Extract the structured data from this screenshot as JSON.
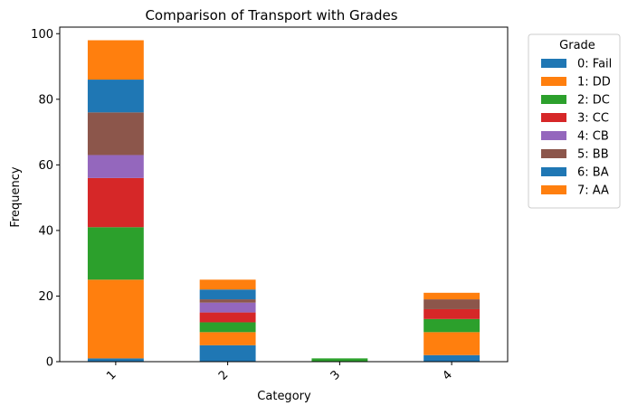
{
  "chart_data": {
    "type": "bar",
    "stacked": true,
    "title": "Comparison of Transport with Grades",
    "xlabel": "Category",
    "ylabel": "Frequency",
    "categories": [
      "1",
      "2",
      "3",
      "4"
    ],
    "ylim": [
      0,
      102
    ],
    "yticks": [
      0,
      20,
      40,
      60,
      80,
      100
    ],
    "grid": false,
    "legend": {
      "title": "Grade",
      "placement": "outside-top-right"
    },
    "series": [
      {
        "name": "0: Fail",
        "color": "#1f77b4",
        "values": [
          1,
          5,
          0,
          2
        ]
      },
      {
        "name": "1: DD",
        "color": "#ff7f0e",
        "values": [
          24,
          4,
          0,
          7
        ]
      },
      {
        "name": "2: DC",
        "color": "#2ca02c",
        "values": [
          16,
          3,
          1,
          4
        ]
      },
      {
        "name": "3: CC",
        "color": "#d62728",
        "values": [
          15,
          3,
          0,
          3
        ]
      },
      {
        "name": "4: CB",
        "color": "#9467bd",
        "values": [
          7,
          3,
          0,
          0
        ]
      },
      {
        "name": "5: BB",
        "color": "#8c564b",
        "values": [
          13,
          1,
          0,
          3
        ]
      },
      {
        "name": "6: BA",
        "color": "#1f77b4",
        "values": [
          10,
          3,
          0,
          0
        ]
      },
      {
        "name": "7: AA",
        "color": "#ff7f0e",
        "values": [
          12,
          3,
          0,
          2
        ]
      }
    ]
  }
}
